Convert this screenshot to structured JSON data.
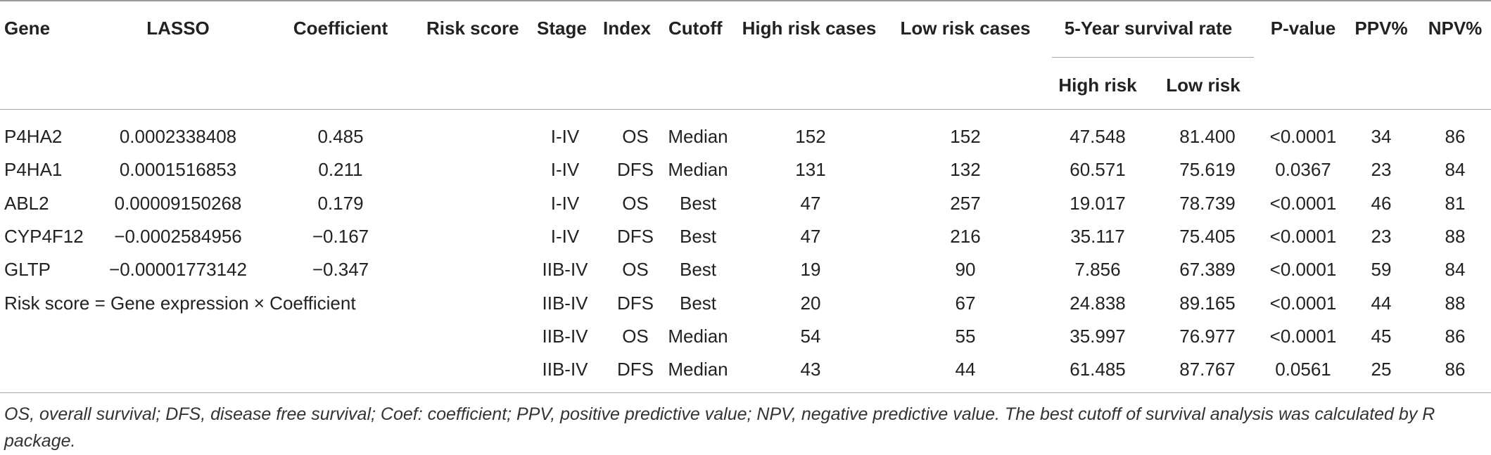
{
  "headers": {
    "gene": "Gene",
    "lasso": "LASSO",
    "coefficient": "Coefficient",
    "risk_score": "Risk score",
    "stage": "Stage",
    "index": "Index",
    "cutoff": "Cutoff",
    "high_risk_cases": "High risk cases",
    "low_risk_cases": "Low risk cases",
    "survival_group": "5-Year survival rate",
    "high_risk": "High risk",
    "low_risk": "Low risk",
    "p_value": "P-value",
    "ppv": "PPV%",
    "npv": "NPV%"
  },
  "genes": [
    {
      "gene": "P4HA2",
      "lasso": "0.0002338408",
      "coef": "0.485"
    },
    {
      "gene": "P4HA1",
      "lasso": "0.0001516853",
      "coef": "0.211"
    },
    {
      "gene": "ABL2",
      "lasso": "0.00009150268",
      "coef": "0.179"
    },
    {
      "gene": "CYP4F12",
      "lasso": "−0.0002584956",
      "coef": "−0.167"
    },
    {
      "gene": "GLTP",
      "lasso": "−0.00001773142",
      "coef": "−0.347"
    }
  ],
  "formula": "Risk score = Gene expression × Coefficient",
  "rows": [
    {
      "stage": "I-IV",
      "index": "OS",
      "cutoff": "Median",
      "high_cases": "152",
      "low_cases": "152",
      "high_risk": "47.548",
      "low_risk": "81.400",
      "p": "<0.0001",
      "ppv": "34",
      "npv": "86"
    },
    {
      "stage": "I-IV",
      "index": "DFS",
      "cutoff": "Median",
      "high_cases": "131",
      "low_cases": "132",
      "high_risk": "60.571",
      "low_risk": "75.619",
      "p": "0.0367",
      "ppv": "23",
      "npv": "84"
    },
    {
      "stage": "I-IV",
      "index": "OS",
      "cutoff": "Best",
      "high_cases": "47",
      "low_cases": "257",
      "high_risk": "19.017",
      "low_risk": "78.739",
      "p": "<0.0001",
      "ppv": "46",
      "npv": "81"
    },
    {
      "stage": "I-IV",
      "index": "DFS",
      "cutoff": "Best",
      "high_cases": "47",
      "low_cases": "216",
      "high_risk": "35.117",
      "low_risk": "75.405",
      "p": "<0.0001",
      "ppv": "23",
      "npv": "88"
    },
    {
      "stage": "IIB-IV",
      "index": "OS",
      "cutoff": "Best",
      "high_cases": "19",
      "low_cases": "90",
      "high_risk": "7.856",
      "low_risk": "67.389",
      "p": "<0.0001",
      "ppv": "59",
      "npv": "84"
    },
    {
      "stage": "IIB-IV",
      "index": "DFS",
      "cutoff": "Best",
      "high_cases": "20",
      "low_cases": "67",
      "high_risk": "24.838",
      "low_risk": "89.165",
      "p": "<0.0001",
      "ppv": "44",
      "npv": "88"
    },
    {
      "stage": "IIB-IV",
      "index": "OS",
      "cutoff": "Median",
      "high_cases": "54",
      "low_cases": "55",
      "high_risk": "35.997",
      "low_risk": "76.977",
      "p": "<0.0001",
      "ppv": "45",
      "npv": "86"
    },
    {
      "stage": "IIB-IV",
      "index": "DFS",
      "cutoff": "Median",
      "high_cases": "43",
      "low_cases": "44",
      "high_risk": "61.485",
      "low_risk": "87.767",
      "p": "0.0561",
      "ppv": "25",
      "npv": "86"
    }
  ],
  "footnote": "OS, overall survival; DFS, disease free survival; Coef: coefficient; PPV, positive predictive value; NPV, negative predictive value. The best cutoff of survival analysis was calculated by R package."
}
